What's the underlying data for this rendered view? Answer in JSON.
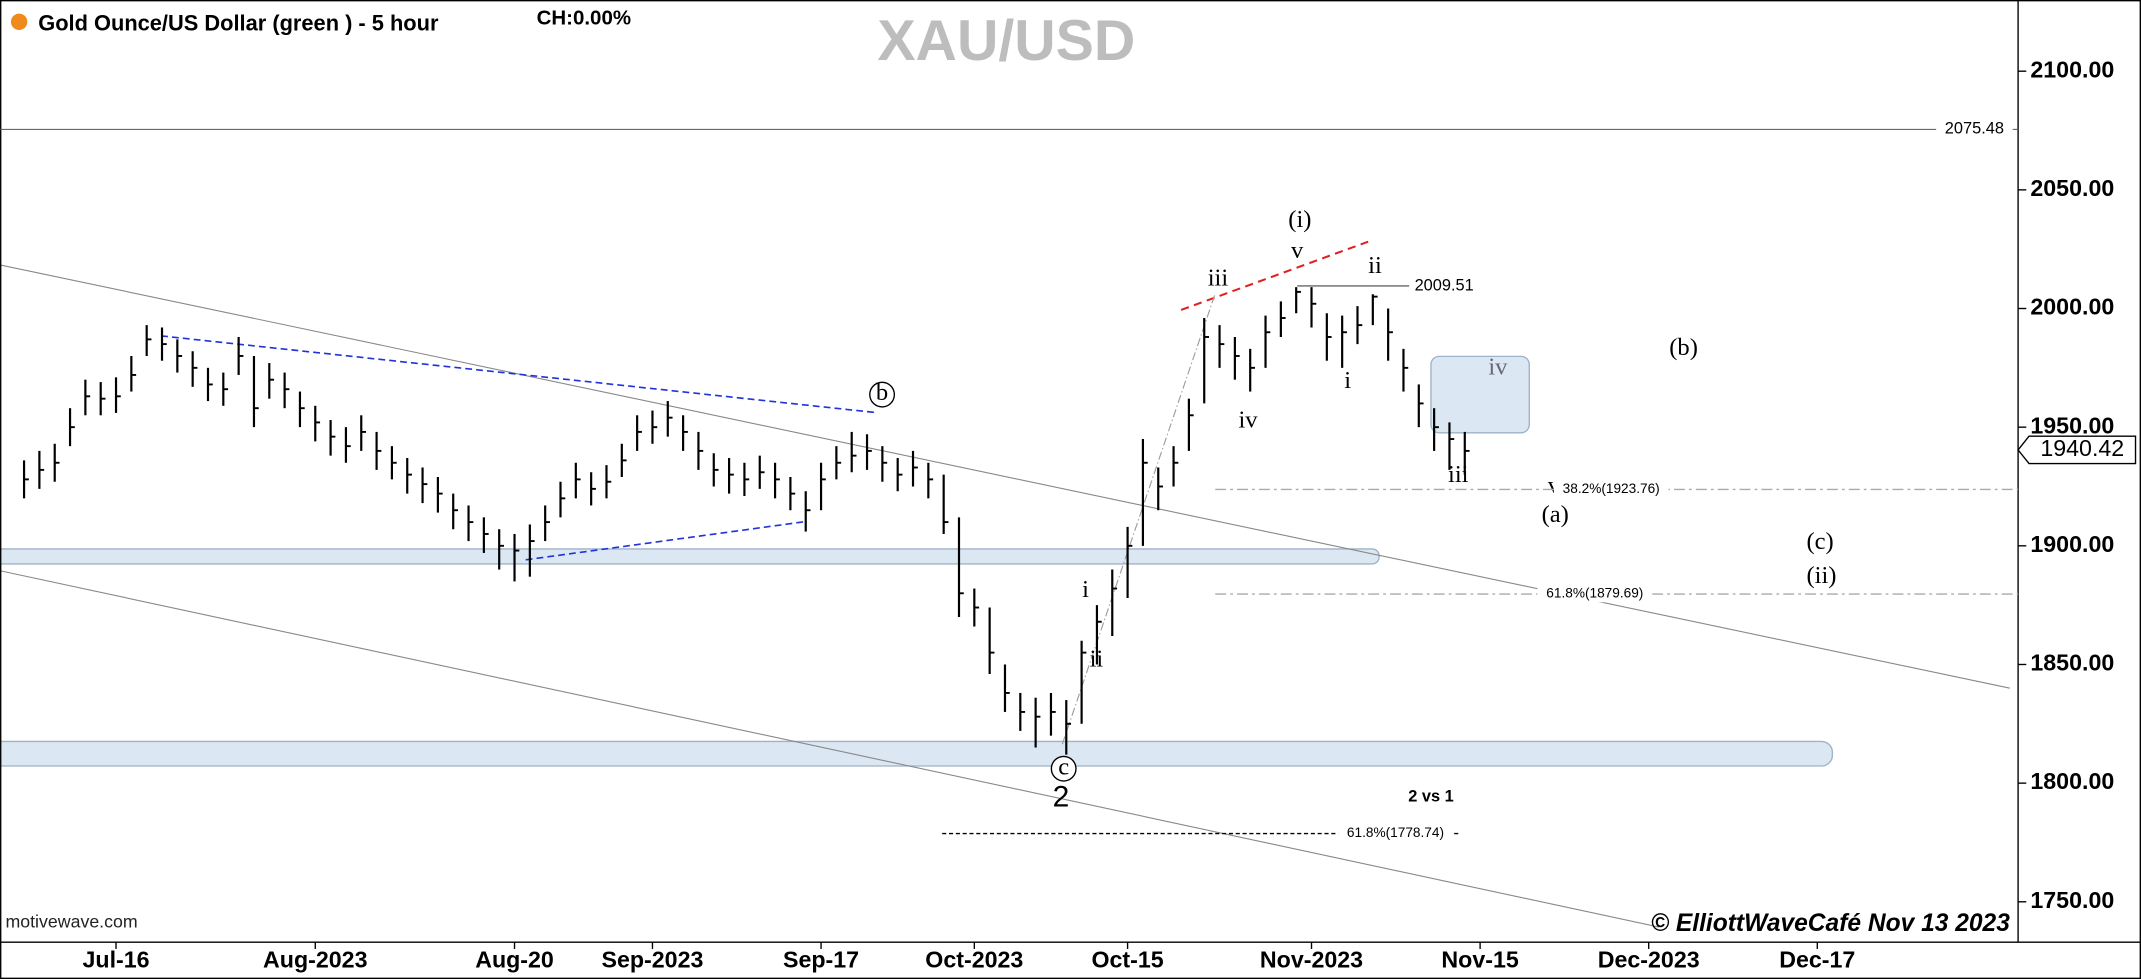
{
  "chart_data": {
    "type": "ohlc",
    "title": "Gold Ounce/US Dollar (green ) - 5 hour",
    "change": "CH:0.00%",
    "symbol": "XAU/USD",
    "categories": [
      null,
      null,
      null,
      null,
      null,
      null,
      "Jul-16",
      null,
      null,
      null,
      null,
      null,
      null,
      null,
      null,
      null,
      null,
      null,
      null,
      "Aug-2023",
      null,
      null,
      null,
      null,
      null,
      null,
      null,
      null,
      null,
      null,
      null,
      null,
      "Aug-20",
      null,
      null,
      null,
      null,
      null,
      null,
      null,
      null,
      "Sep-2023",
      null,
      null,
      null,
      null,
      null,
      null,
      null,
      null,
      null,
      null,
      "Sep-17",
      null,
      null,
      null,
      null,
      null,
      null,
      null,
      null,
      null,
      "Oct-2023",
      null,
      null,
      null,
      null,
      null,
      null,
      null,
      null,
      null,
      "Oct-15",
      null,
      null,
      null,
      null,
      null,
      null,
      null,
      null,
      null,
      null,
      null,
      "Nov-2023",
      null,
      null,
      null,
      null,
      null,
      null,
      null,
      null,
      null,
      null,
      "Nov-15",
      null,
      null,
      null,
      null,
      null,
      null,
      null,
      null,
      null,
      null,
      "Dec-2023",
      null,
      null,
      null,
      null,
      null,
      null,
      null,
      null,
      null,
      null,
      "Dec-17"
    ],
    "high": [
      1936,
      1940,
      1943,
      1958,
      1970,
      1969,
      1971,
      1980,
      1993,
      1992,
      1987,
      1982,
      1975,
      1973,
      1988,
      1980,
      1977,
      1973,
      1965,
      1959,
      1953,
      1950,
      1955,
      1948,
      1942,
      1937,
      1933,
      1929,
      1922,
      1917,
      1912,
      1907,
      1905,
      1909,
      1917,
      1927,
      1935,
      1931,
      1934,
      1943,
      1955,
      1957,
      1961,
      1955,
      1948,
      1939,
      1937,
      1935,
      1938,
      1935,
      1929,
      1923,
      1935,
      1942,
      1948,
      1947,
      1942,
      1937,
      1940,
      1935,
      1930,
      1912,
      1882,
      1874,
      1850,
      1838,
      1836,
      1838,
      1835,
      1860,
      1875,
      1890,
      1908,
      1945,
      1933,
      1942,
      1962,
      1996,
      1993,
      1988,
      1983,
      1997,
      2003,
      2009,
      2009,
      1998,
      1997,
      2001,
      2006,
      2000,
      1983,
      1968,
      1958,
      1952,
      1948,
      null,
      null,
      null,
      null,
      null,
      null,
      null,
      null,
      null,
      null,
      null,
      null,
      null,
      null,
      null,
      null,
      null,
      null,
      null,
      null,
      null,
      null,
      null
    ],
    "low": [
      1920,
      1924,
      1927,
      1942,
      1955,
      1955,
      1956,
      1965,
      1980,
      1978,
      1973,
      1967,
      1961,
      1959,
      1972,
      1950,
      1962,
      1958,
      1950,
      1944,
      1938,
      1935,
      1940,
      1932,
      1928,
      1922,
      1918,
      1914,
      1907,
      1902,
      1897,
      1890,
      1885,
      1887,
      1902,
      1912,
      1920,
      1917,
      1920,
      1929,
      1940,
      1943,
      1946,
      1940,
      1932,
      1925,
      1922,
      1921,
      1924,
      1920,
      1915,
      1906,
      1915,
      1928,
      1931,
      1932,
      1927,
      1923,
      1925,
      1920,
      1905,
      1870,
      1866,
      1846,
      1830,
      1822,
      1815,
      1820,
      1812,
      1825,
      1850,
      1862,
      1878,
      1900,
      1915,
      1925,
      1940,
      1960,
      1975,
      1970,
      1965,
      1975,
      1988,
      1998,
      1992,
      1978,
      1975,
      1985,
      1993,
      1978,
      1965,
      1950,
      1940,
      1932,
      1930,
      null,
      null,
      null,
      null,
      null,
      null,
      null,
      null,
      null,
      null,
      null,
      null,
      null,
      null,
      null,
      null,
      null,
      null,
      null,
      null,
      null,
      null,
      null
    ],
    "close": [
      1928,
      1932,
      1935,
      1950,
      1963,
      1962,
      1963,
      1972,
      1987,
      1985,
      1980,
      1975,
      1968,
      1966,
      1980,
      1958,
      1970,
      1966,
      1958,
      1952,
      1946,
      1942,
      1948,
      1940,
      1935,
      1930,
      1926,
      1922,
      1915,
      1910,
      1905,
      1900,
      1898,
      1902,
      1910,
      1920,
      1928,
      1924,
      1927,
      1936,
      1948,
      1950,
      1954,
      1948,
      1940,
      1932,
      1930,
      1928,
      1931,
      1928,
      1922,
      1915,
      1928,
      1935,
      1938,
      1940,
      1935,
      1930,
      1933,
      1928,
      1910,
      1880,
      1874,
      1855,
      1838,
      1830,
      1828,
      1830,
      1825,
      1855,
      1868,
      1882,
      1900,
      1935,
      1925,
      1935,
      1955,
      1988,
      1985,
      1980,
      1975,
      1990,
      1996,
      2007,
      2002,
      1988,
      1990,
      1993,
      2005,
      1990,
      1975,
      1960,
      1950,
      1945,
      1940,
      null,
      null,
      null,
      null,
      null,
      null,
      null,
      null,
      null,
      null,
      null,
      null,
      null,
      null,
      null,
      null,
      null,
      null,
      null,
      null,
      null,
      null,
      null
    ],
    "color": "#000000",
    "ylim": [
      1733,
      2130
    ],
    "yticks": [
      {
        "value": 1750,
        "label": "1750.00"
      },
      {
        "value": 1800,
        "label": "1800.00"
      },
      {
        "value": 1850,
        "label": "1850.00"
      },
      {
        "value": 1900,
        "label": "1900.00"
      },
      {
        "value": 1950,
        "label": "1950.00"
      },
      {
        "value": 2000,
        "label": "2000.00"
      },
      {
        "value": 2050,
        "label": "2050.00"
      },
      {
        "value": 2100,
        "label": "2100.00"
      }
    ],
    "last_price": 1940.42,
    "resistance": 2075.48,
    "wave_high": 2009.51,
    "fib_levels": [
      {
        "value": 1923.76,
        "label": "38.2%(1923.76)"
      },
      {
        "value": 1879.69,
        "label": "61.8%(1879.69)"
      },
      {
        "value": 1778.74,
        "label": "61.8%(1778.74)"
      }
    ],
    "annotations": [
      "(i)",
      "v",
      "iii",
      "ii",
      "iv",
      "i",
      "iii",
      "iv",
      "(b)",
      "v",
      "(a)",
      "(c)",
      "(ii)",
      "i",
      "ii",
      "b",
      "c",
      "2",
      "2 vs 1"
    ],
    "source": "motivewave.com",
    "copyright": "© ElliottWaveCafé Nov 13 2023"
  }
}
